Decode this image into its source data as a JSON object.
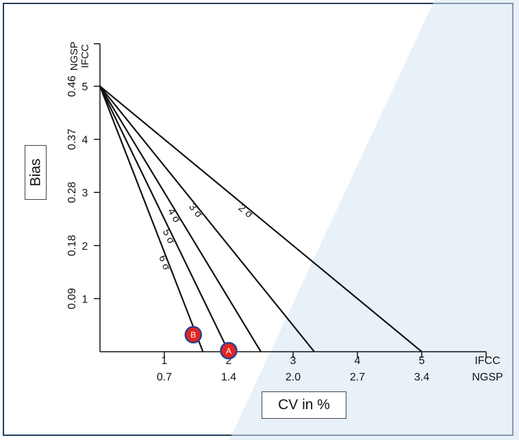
{
  "chart_data": {
    "type": "line",
    "title": "",
    "ylabel": "Bias",
    "xlabel": "CV in %",
    "x_axis": {
      "primary_name": "IFCC",
      "secondary_name": "NGSP",
      "ticks": [
        {
          "value": 1,
          "ifcc": "1",
          "ngsp": "0.7"
        },
        {
          "value": 2,
          "ifcc": "2",
          "ngsp": "1.4"
        },
        {
          "value": 3,
          "ifcc": "3",
          "ngsp": "2.0"
        },
        {
          "value": 4,
          "ifcc": "4",
          "ngsp": "2.7"
        },
        {
          "value": 5,
          "ifcc": "5",
          "ngsp": "3.4"
        }
      ],
      "xlim": [
        0,
        6
      ]
    },
    "y_axis": {
      "primary_name": "IFCC",
      "secondary_name": "NGSP",
      "ticks": [
        {
          "value": 1,
          "ifcc": "1",
          "ngsp": "0.09"
        },
        {
          "value": 2,
          "ifcc": "2",
          "ngsp": "0.18"
        },
        {
          "value": 3,
          "ifcc": "3",
          "ngsp": "0.28"
        },
        {
          "value": 4,
          "ifcc": "4",
          "ngsp": "0.37"
        },
        {
          "value": 5,
          "ifcc": "5",
          "ngsp": "0.46"
        }
      ],
      "ylim": [
        0,
        5.8
      ]
    },
    "series": [
      {
        "name": "2 σ",
        "x": [
          0,
          5.0
        ],
        "y": [
          5,
          0
        ]
      },
      {
        "name": "3 σ",
        "x": [
          0,
          3.33
        ],
        "y": [
          5,
          0
        ]
      },
      {
        "name": "4 σ",
        "x": [
          0,
          2.5
        ],
        "y": [
          5,
          0
        ]
      },
      {
        "name": "5 σ",
        "x": [
          0,
          2.0
        ],
        "y": [
          5,
          0
        ]
      },
      {
        "name": "6 σ",
        "x": [
          0,
          1.6
        ],
        "y": [
          5,
          0
        ]
      }
    ],
    "points": [
      {
        "label": "A",
        "x": 2.0,
        "y": 0.02
      },
      {
        "label": "B",
        "x": 1.45,
        "y": 0.32
      }
    ],
    "colors": {
      "lines": "#111111",
      "point_fill": "#e52521",
      "point_stroke": "#2b3f8f"
    }
  }
}
